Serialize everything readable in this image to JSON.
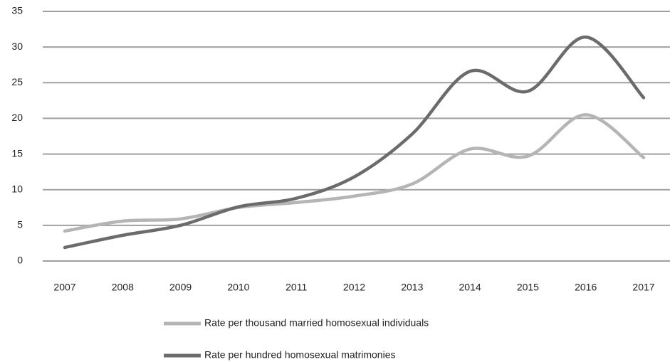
{
  "chart_data": {
    "type": "line",
    "categories": [
      "2007",
      "2008",
      "2009",
      "2010",
      "2011",
      "2012",
      "2013",
      "2014",
      "2015",
      "2016",
      "2017"
    ],
    "series": [
      {
        "name": "Rate per thousand married homosexual individuals",
        "color": "#b5b5b5",
        "values": [
          4.2,
          5.6,
          5.9,
          7.5,
          8.2,
          9.1,
          10.8,
          15.7,
          14.7,
          20.5,
          14.5
        ]
      },
      {
        "name": "Rate per hundred homosexual matrimonies",
        "color": "#6b6b6b",
        "values": [
          1.9,
          3.6,
          5.0,
          7.6,
          8.8,
          11.8,
          17.8,
          26.6,
          23.8,
          31.4,
          22.9
        ]
      }
    ],
    "ylim": [
      0,
      35
    ],
    "yticks": [
      0,
      5,
      10,
      15,
      20,
      25,
      30,
      35
    ],
    "grid": true,
    "legend": "bottom"
  }
}
